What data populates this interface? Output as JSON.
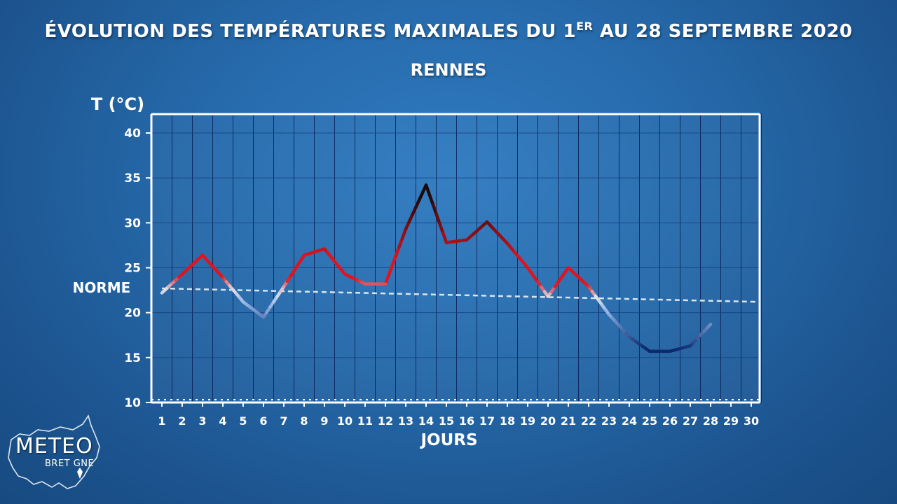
{
  "header": {
    "title_part1": "ÉVOLUTION DES TEMPÉRATURES MAXIMALES DU 1",
    "title_sup": "ER",
    "title_part2": " AU 28 SEPTEMBRE 2020",
    "subtitle": "RENNES"
  },
  "logo": {
    "line1": "METEO",
    "line2": "BRET GNE"
  },
  "colors": {
    "warm": "#e0141e",
    "hot": "#1a0a0a",
    "cool": "#0c2a6e",
    "norm_line": "#d9e6f2",
    "axis": "#ffffff"
  },
  "chart_data": {
    "type": "line",
    "ylabel": "T (°C)",
    "xlabel": "JOURS",
    "ylim": [
      10,
      40
    ],
    "yticks": [
      10,
      15,
      20,
      25,
      30,
      35,
      40
    ],
    "xlim": [
      1,
      30
    ],
    "categories": [
      1,
      2,
      3,
      4,
      5,
      6,
      7,
      8,
      9,
      10,
      11,
      12,
      13,
      14,
      15,
      16,
      17,
      18,
      19,
      20,
      21,
      22,
      23,
      24,
      25,
      26,
      27,
      28,
      29,
      30
    ],
    "grid": true,
    "series": [
      {
        "type": "line",
        "x": [
          1,
          2,
          3,
          4,
          5,
          6,
          7,
          8,
          9,
          10,
          11,
          12,
          13,
          14,
          15,
          16,
          17,
          18,
          19,
          20,
          21,
          22,
          23,
          24,
          25,
          26,
          27,
          28
        ],
        "values": [
          22.2,
          24.3,
          26.4,
          23.9,
          21.2,
          19.5,
          22.9,
          26.4,
          27.1,
          24.3,
          23.2,
          23.2,
          29.3,
          34.2,
          27.8,
          28.1,
          30.1,
          27.7,
          25.0,
          21.8,
          25.0,
          22.9,
          19.8,
          17.3,
          15.7,
          15.7,
          16.3,
          18.7
        ]
      }
    ],
    "norm": {
      "label": "NORME",
      "x": [
        1,
        30
      ],
      "values": [
        22.7,
        21.2
      ]
    }
  }
}
